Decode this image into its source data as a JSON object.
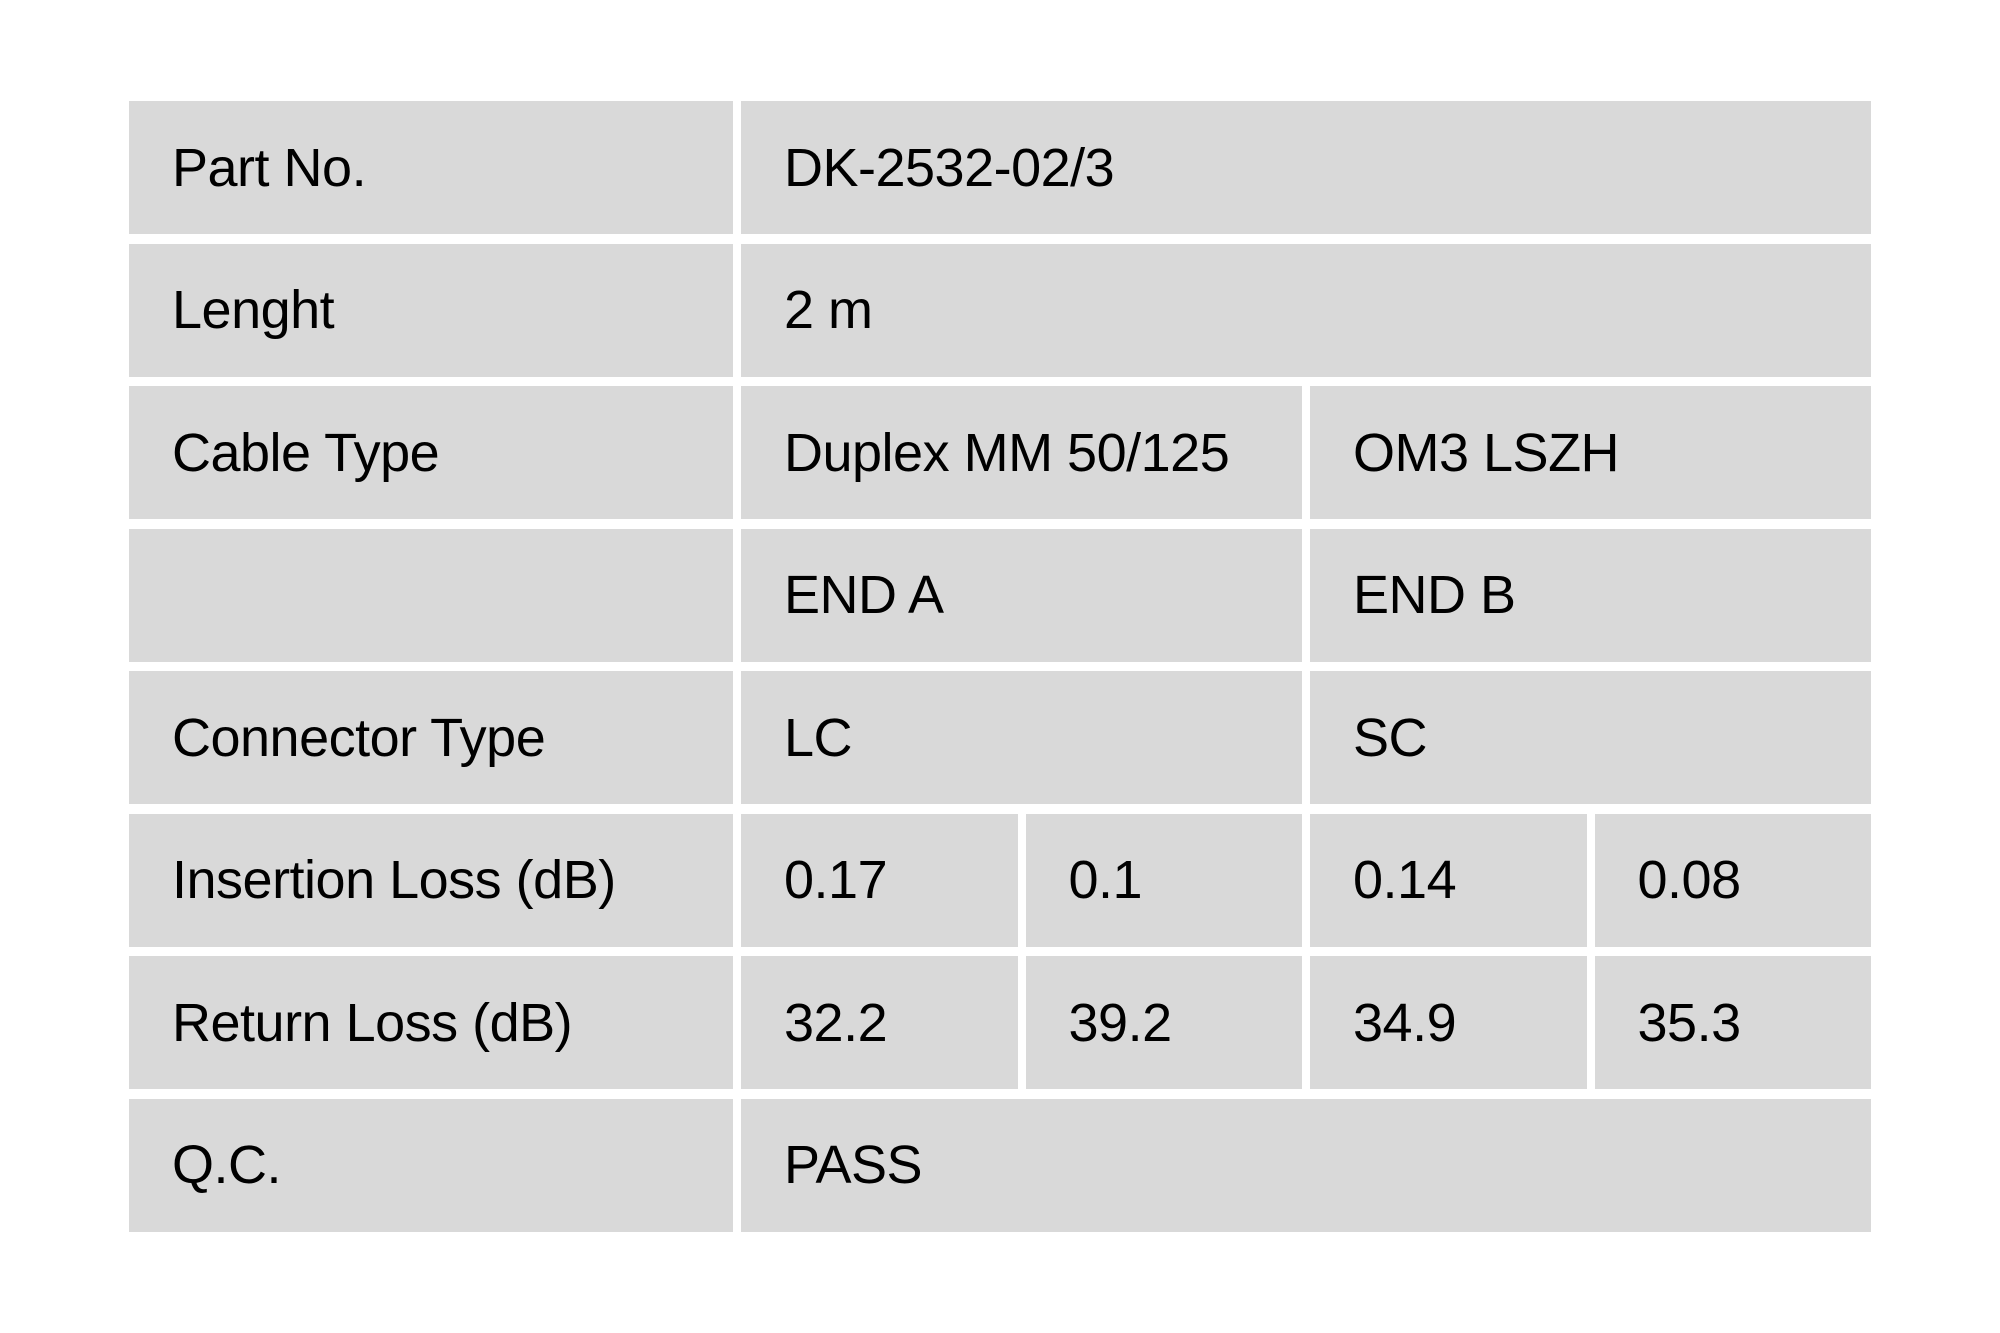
{
  "page": {
    "background_color": "#ffffff",
    "cell_background_color": "#d9d9d9",
    "text_color": "#000000"
  },
  "qc_table": {
    "rows": [
      {
        "label": "Part No.",
        "cells": [
          "DK-2532-02/3"
        ]
      },
      {
        "label": "Lenght",
        "cells": [
          "2 m"
        ]
      },
      {
        "label": "Cable Type",
        "cells": [
          "Duplex MM 50/125",
          "OM3 LSZH"
        ]
      },
      {
        "label": "",
        "cells": [
          "END A",
          "END B"
        ]
      },
      {
        "label": "Connector Type",
        "cells": [
          "LC",
          "SC"
        ]
      },
      {
        "label": "Insertion Loss (dB)",
        "cells": [
          "0.17",
          "0.1",
          "0.14",
          "0.08"
        ]
      },
      {
        "label": "Return Loss (dB)",
        "cells": [
          "32.2",
          "39.2",
          "34.9",
          "35.3"
        ]
      },
      {
        "label": "Q.C.",
        "cells": [
          "PASS"
        ]
      }
    ]
  }
}
